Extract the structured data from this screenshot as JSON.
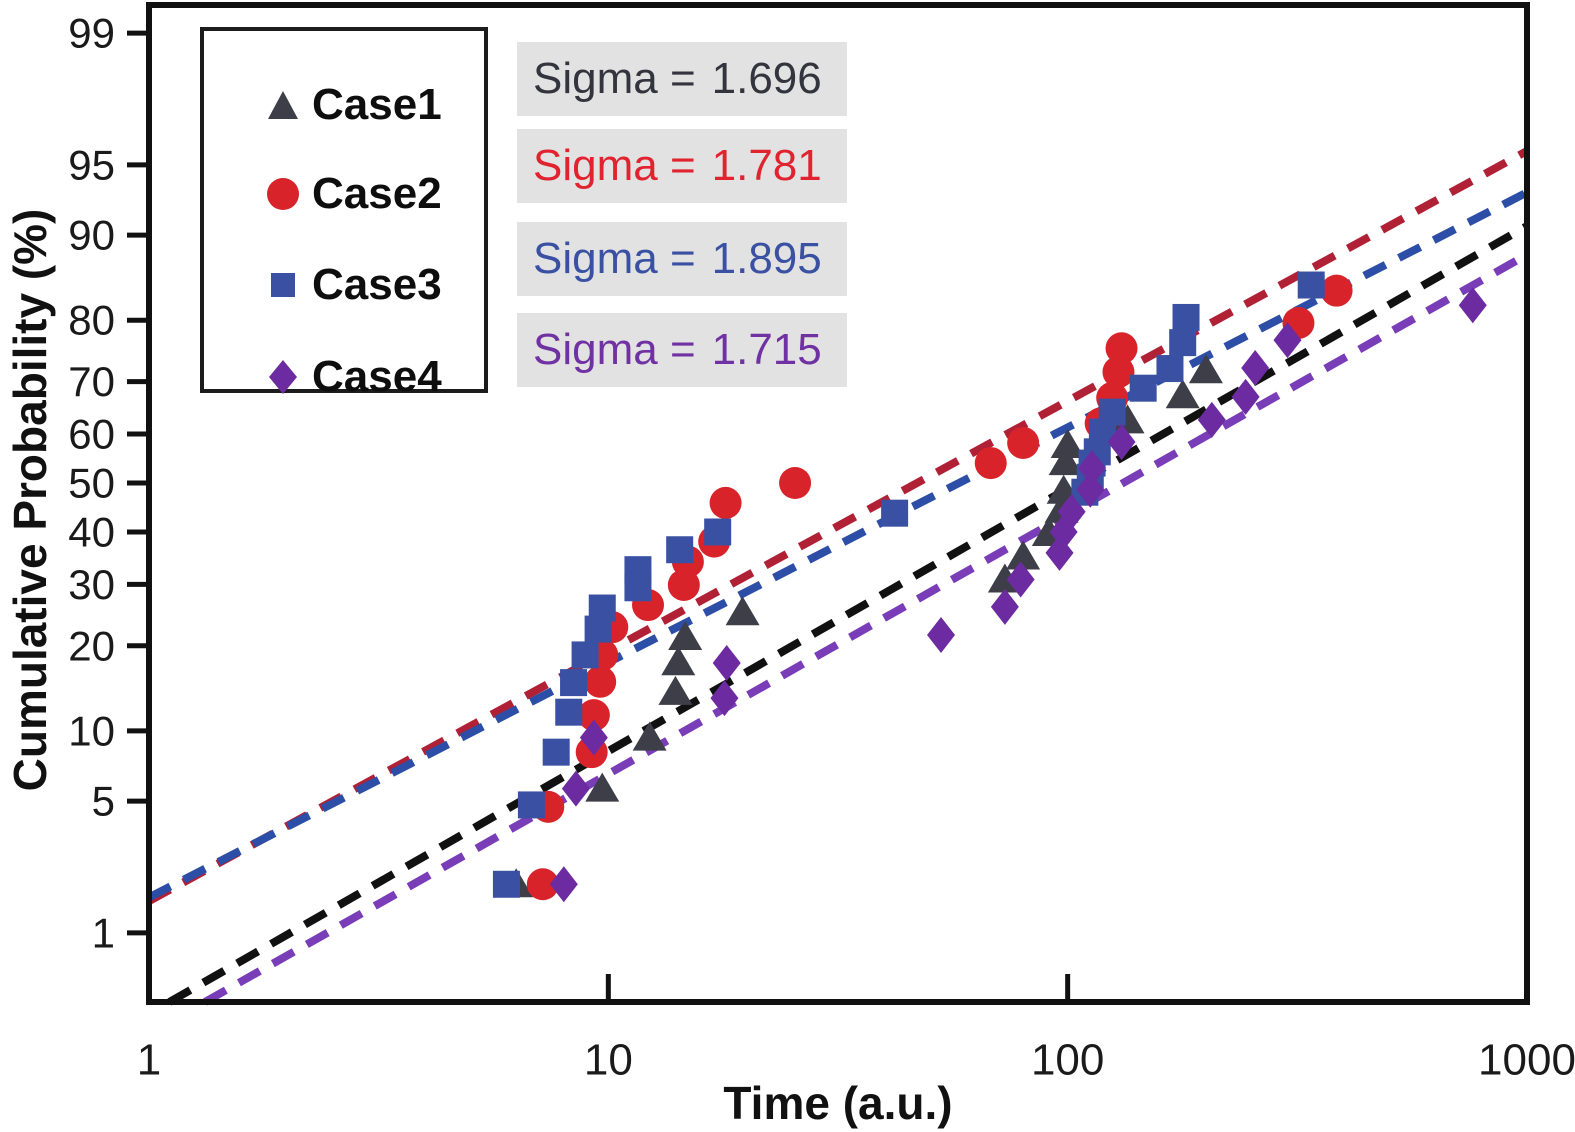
{
  "figure": {
    "kind": "lognormal cumulative probability plot",
    "background": "#ffffff"
  },
  "chart_data": {
    "type": "scatter",
    "title": "",
    "xlabel": "Time (a.u.)",
    "ylabel": "Cumulative Probability (%)",
    "x_scale": "log",
    "y_scale": "normal-probability",
    "x_range": [
      1,
      1000
    ],
    "x_ticks": [
      1,
      10,
      100,
      1000
    ],
    "y_ticks_percent": [
      1,
      5,
      10,
      20,
      30,
      40,
      50,
      60,
      70,
      80,
      90,
      95,
      99
    ],
    "y_range_percent": [
      0.4,
      99.3
    ],
    "grid": false,
    "legend_position": "upper-left",
    "series": [
      {
        "name": "Case1",
        "marker": "triangle",
        "marker_color": "#3d3e48",
        "line_color": "#111111",
        "line_style": "dashed",
        "sigma_label": "Sigma =",
        "sigma_value": "1.696",
        "sigma_color": "#34343e",
        "fit": {
          "sigma": 1.696,
          "t50_estimate": 105
        },
        "points": [
          [
            6.3,
            1.9
          ],
          [
            9.7,
            5.7
          ],
          [
            12.3,
            9.4
          ],
          [
            14.0,
            14.0
          ],
          [
            14.2,
            17.7
          ],
          [
            14.7,
            21.3
          ],
          [
            19.6,
            25.2
          ],
          [
            73,
            30.9
          ],
          [
            80,
            35.2
          ],
          [
            91,
            39.8
          ],
          [
            97,
            44.5
          ],
          [
            98,
            48.4
          ],
          [
            99,
            54.3
          ],
          [
            100,
            57.8
          ],
          [
            135,
            62.7
          ],
          [
            178,
            67.5
          ],
          [
            200,
            72.0
          ]
        ]
      },
      {
        "name": "Case2",
        "marker": "circle",
        "marker_color": "#d9232b",
        "line_color": "#b02136",
        "line_style": "dashed",
        "sigma_label": "Sigma =",
        "sigma_value": "1.781",
        "sigma_color": "#e0232e",
        "fit": {
          "sigma": 1.781,
          "t50_estimate": 47
        },
        "points": [
          [
            7.2,
            1.9
          ],
          [
            7.4,
            4.7
          ],
          [
            9.2,
            8.2
          ],
          [
            9.3,
            11.5
          ],
          [
            9.6,
            15.2
          ],
          [
            9.7,
            18.7
          ],
          [
            10.2,
            22.8
          ],
          [
            12.2,
            26.4
          ],
          [
            14.6,
            29.9
          ],
          [
            14.9,
            34.2
          ],
          [
            17.0,
            38.1
          ],
          [
            18.0,
            45.9
          ],
          [
            25.5,
            50.0
          ],
          [
            68,
            54.1
          ],
          [
            80,
            58.2
          ],
          [
            118,
            62.1
          ],
          [
            125,
            67.0
          ],
          [
            129,
            71.7
          ],
          [
            131,
            75.7
          ],
          [
            318,
            79.6
          ],
          [
            385,
            84.0
          ]
        ]
      },
      {
        "name": "Case3",
        "marker": "square",
        "marker_color": "#3a51a3",
        "line_color": "#2d4ea6",
        "line_style": "dashed",
        "sigma_label": "Sigma =",
        "sigma_value": "1.895",
        "sigma_color": "#3a51a3",
        "fit": {
          "sigma": 1.895,
          "t50_estimate": 58
        },
        "points": [
          [
            6.0,
            1.9
          ],
          [
            6.8,
            4.8
          ],
          [
            7.7,
            8.2
          ],
          [
            8.2,
            11.8
          ],
          [
            8.4,
            15.1
          ],
          [
            8.9,
            18.7
          ],
          [
            9.5,
            22.5
          ],
          [
            9.7,
            25.9
          ],
          [
            11.6,
            29.4
          ],
          [
            11.6,
            32.7
          ],
          [
            14.3,
            36.5
          ],
          [
            17.3,
            40.0
          ],
          [
            42,
            43.8
          ],
          [
            109,
            48.1
          ],
          [
            112,
            51.2
          ],
          [
            113,
            54.1
          ],
          [
            116,
            56.4
          ],
          [
            119,
            60.4
          ],
          [
            125,
            64.3
          ],
          [
            146,
            68.8
          ],
          [
            167,
            72.3
          ],
          [
            178,
            76.6
          ],
          [
            181,
            80.4
          ],
          [
            339,
            84.7
          ]
        ]
      },
      {
        "name": "Case4",
        "marker": "diamond",
        "marker_color": "#6c2ba0",
        "line_color": "#7a3db8",
        "line_style": "dashed",
        "sigma_label": "Sigma =",
        "sigma_value": "1.715",
        "sigma_color": "#7031a2",
        "fit": {
          "sigma": 1.715,
          "t50_estimate": 132
        },
        "points": [
          [
            8.0,
            1.9
          ],
          [
            8.5,
            5.7
          ],
          [
            9.3,
            9.4
          ],
          [
            17.9,
            13.3
          ],
          [
            18.1,
            17.6
          ],
          [
            53,
            21.6
          ],
          [
            73,
            26.1
          ],
          [
            79,
            30.9
          ],
          [
            96,
            35.9
          ],
          [
            98,
            40.0
          ],
          [
            102,
            44.1
          ],
          [
            112,
            48.6
          ],
          [
            113,
            53.1
          ],
          [
            131,
            58.4
          ],
          [
            206,
            62.8
          ],
          [
            244,
            67.2
          ],
          [
            256,
            72.4
          ],
          [
            301,
            77.0
          ],
          [
            762,
            82.1
          ]
        ]
      }
    ]
  }
}
